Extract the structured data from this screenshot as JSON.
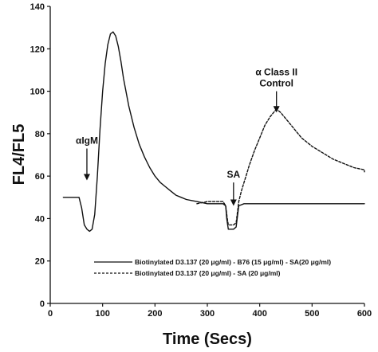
{
  "chart_data": {
    "type": "line",
    "title": "",
    "xlabel": "Time (Secs)",
    "ylabel": "FL4/FL5",
    "xlim": [
      0,
      600
    ],
    "ylim": [
      0,
      140
    ],
    "x_ticks": [
      "0",
      "100",
      "200",
      "300",
      "400",
      "500",
      "600"
    ],
    "y_ticks": [
      "0",
      "20",
      "40",
      "60",
      "80",
      "100",
      "120",
      "140"
    ],
    "grid": false,
    "legend_position": "bottom-right",
    "series": [
      {
        "name": "Biotinylated D3.137 (20 μg/ml) - B76 (15 μg/ml) - SA(20 μg/ml)",
        "style": "solid",
        "color": "#111111",
        "x": [
          25,
          45,
          55,
          60,
          65,
          70,
          75,
          80,
          85,
          90,
          95,
          100,
          105,
          110,
          115,
          120,
          125,
          130,
          135,
          140,
          150,
          160,
          170,
          180,
          190,
          200,
          210,
          220,
          230,
          240,
          250,
          260,
          270,
          280,
          290,
          300,
          310,
          320,
          330,
          335,
          337,
          340,
          350,
          355,
          357,
          360,
          370,
          380,
          400,
          420,
          450,
          480,
          500,
          520,
          550,
          580,
          600
        ],
        "y": [
          50,
          50,
          50,
          45,
          37,
          35,
          34,
          35,
          42,
          60,
          82,
          100,
          113,
          122,
          127,
          128,
          126,
          121,
          114,
          106,
          93,
          83,
          75,
          69,
          64,
          60,
          57,
          55,
          53,
          51,
          50,
          49,
          48.5,
          48,
          47.5,
          47,
          47,
          47,
          47,
          46,
          40,
          35,
          35,
          36,
          40,
          46,
          47,
          47,
          47,
          47,
          47,
          47,
          47,
          47,
          47,
          47,
          47
        ]
      },
      {
        "name": "Biotinylated D3.137 (20 μg/ml) - SA (20 μg/ml)",
        "style": "dashed",
        "color": "#111111",
        "x": [
          280,
          300,
          320,
          330,
          335,
          338,
          340,
          350,
          355,
          358,
          360,
          365,
          370,
          375,
          380,
          390,
          400,
          410,
          420,
          430,
          435,
          440,
          450,
          460,
          470,
          480,
          490,
          500,
          520,
          540,
          560,
          580,
          600,
          610
        ],
        "y": [
          47,
          48,
          48,
          48,
          46,
          40,
          37,
          37,
          38,
          44,
          48,
          53,
          57,
          61,
          65,
          72,
          78,
          84,
          88,
          91,
          91,
          90,
          87,
          84,
          81,
          78,
          76,
          74,
          71,
          68,
          66,
          64,
          63,
          62
        ]
      }
    ],
    "annotations": [
      {
        "lines": [
          "αIgM"
        ],
        "arrow_x": 70,
        "arrow_y_top": 73,
        "arrow_y_bottom": 58
      },
      {
        "lines": [
          "SA"
        ],
        "arrow_x": 350,
        "arrow_y_top": 57,
        "arrow_y_bottom": 46
      },
      {
        "lines": [
          "α Class II",
          "Control"
        ],
        "arrow_x": 432,
        "arrow_y_top": 100,
        "arrow_y_bottom": 90
      }
    ]
  }
}
